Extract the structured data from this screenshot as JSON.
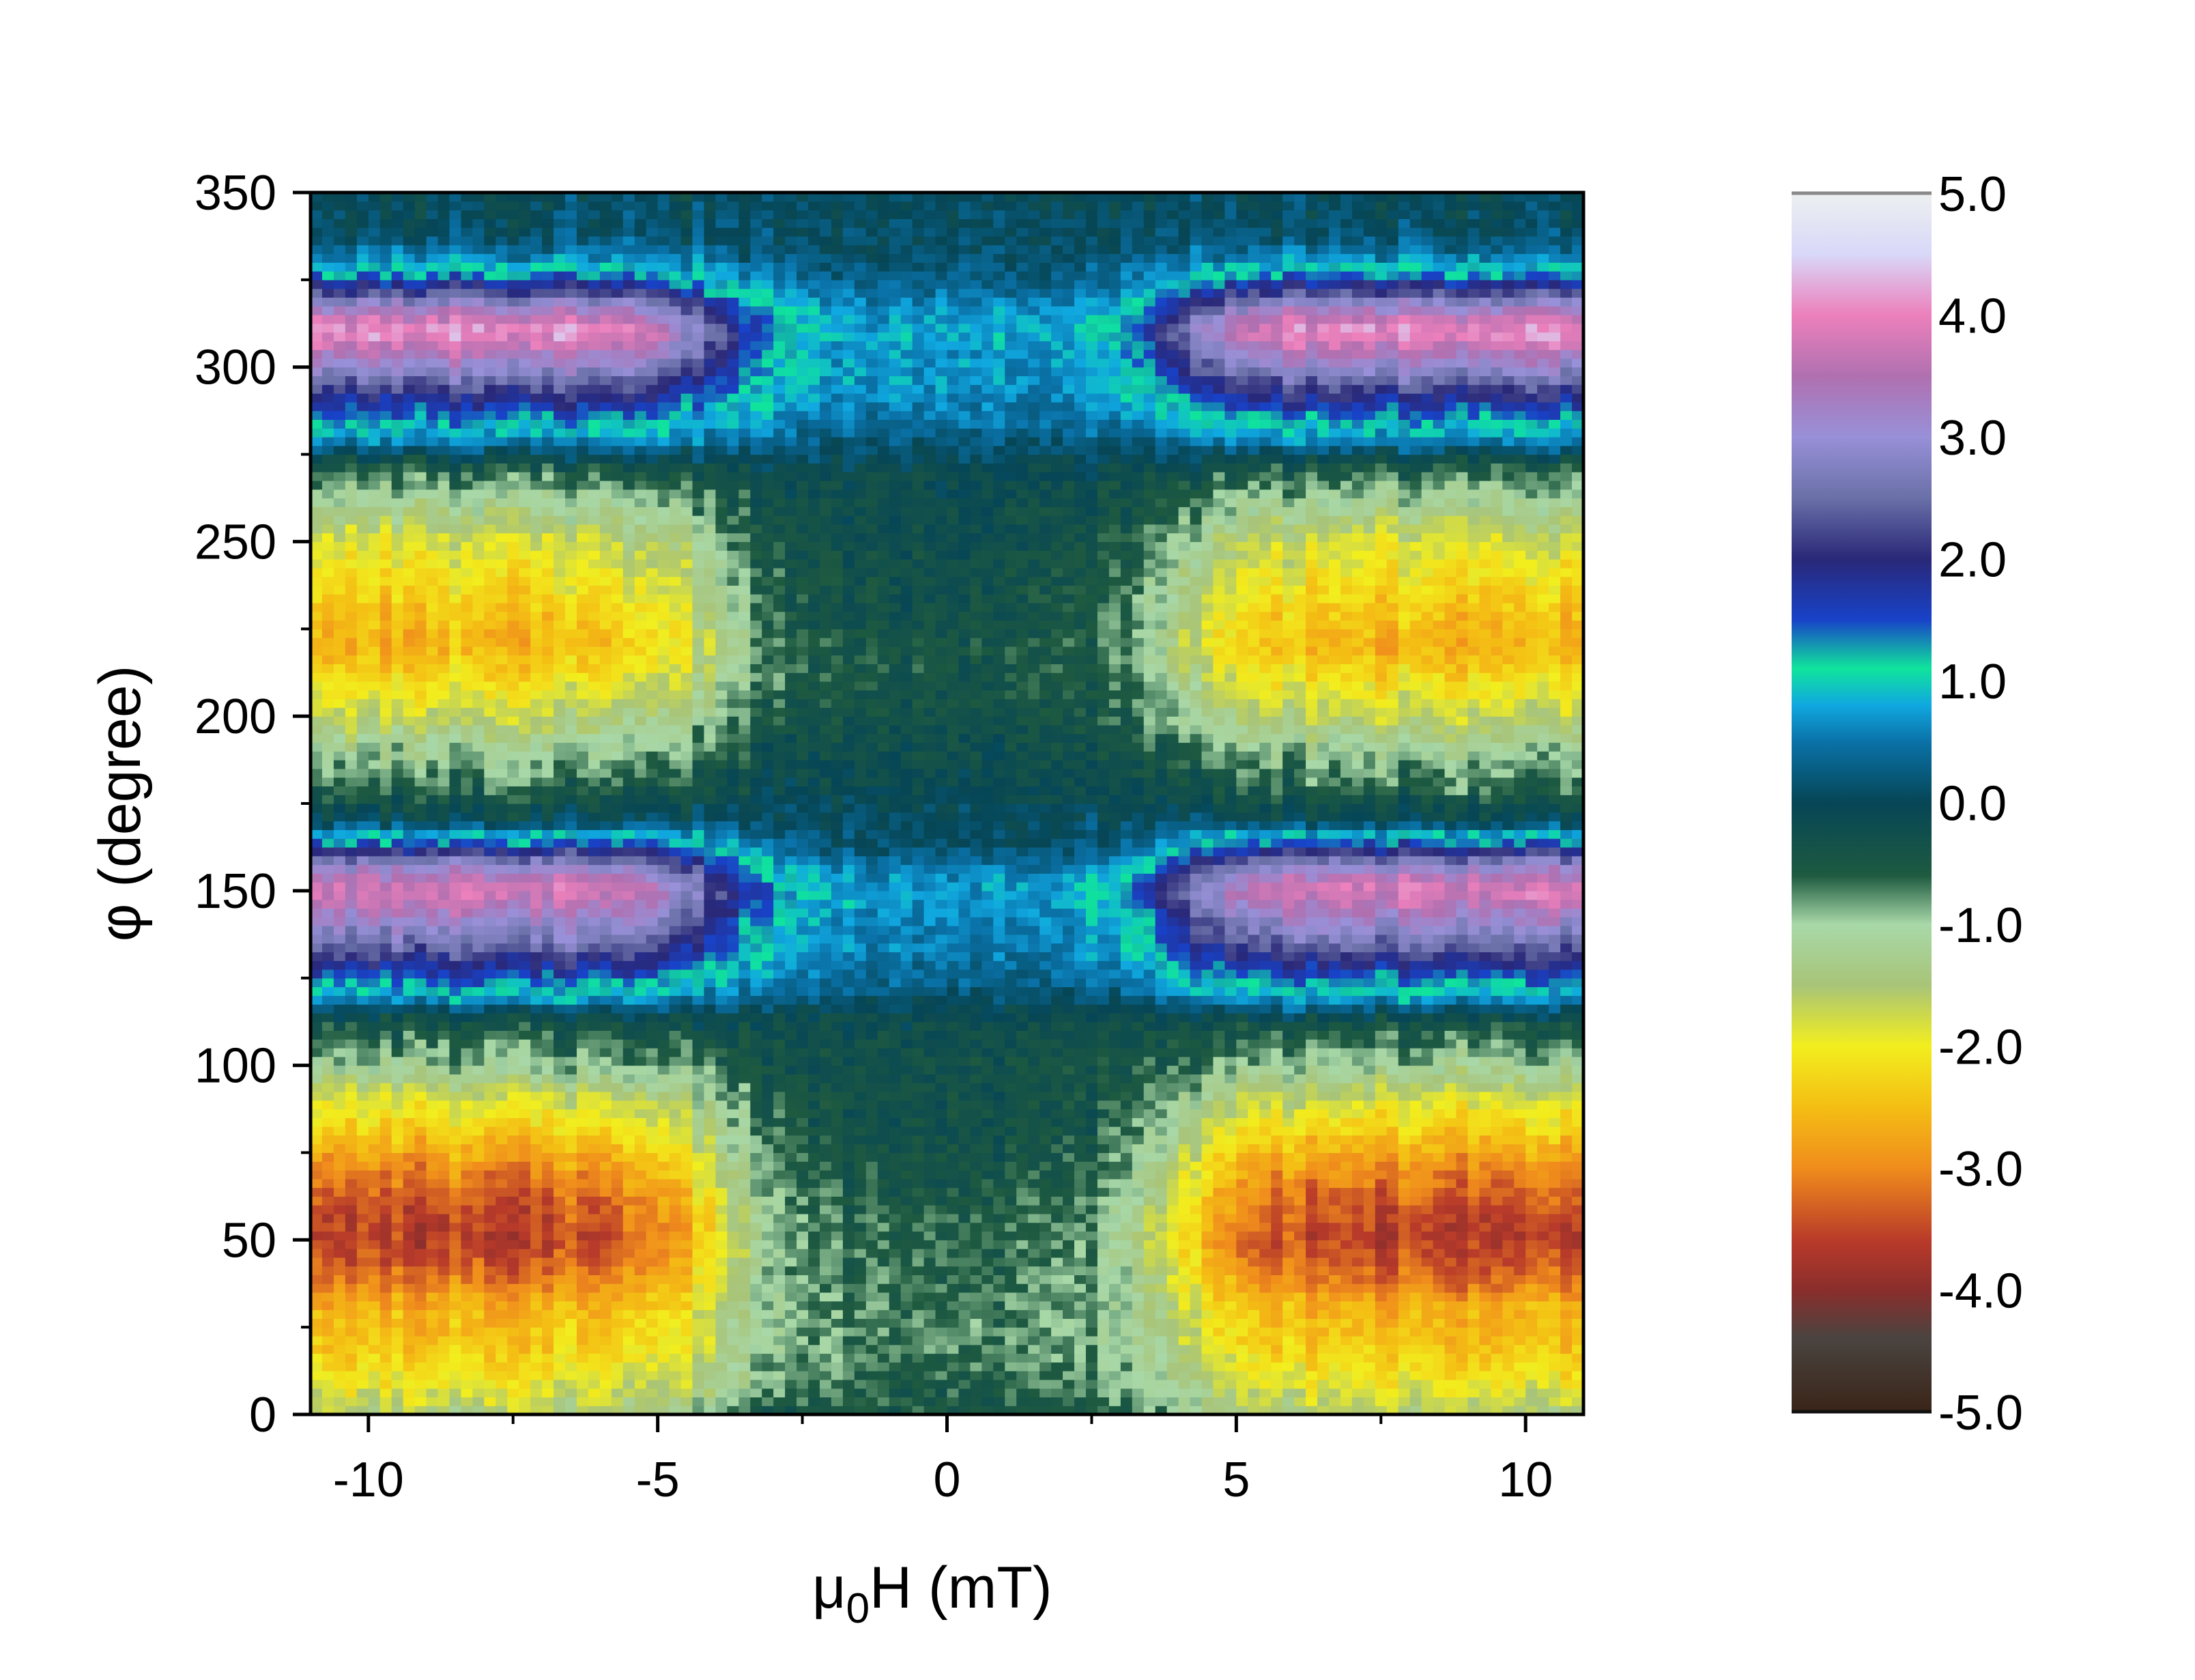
{
  "chart_data": {
    "type": "heatmap",
    "xlabel_main": "μ",
    "xlabel_sub": "0",
    "xlabel_rest": "H (mT)",
    "ylabel": "φ (degree)",
    "xlim": [
      -11,
      11
    ],
    "ylim": [
      0,
      350
    ],
    "x_ticks": [
      {
        "value": -10,
        "label": "-10"
      },
      {
        "value": -5,
        "label": "-5"
      },
      {
        "value": 0,
        "label": "0"
      },
      {
        "value": 5,
        "label": "5"
      },
      {
        "value": 10,
        "label": "10"
      }
    ],
    "y_ticks": [
      {
        "value": 0,
        "label": "0"
      },
      {
        "value": 50,
        "label": "50"
      },
      {
        "value": 100,
        "label": "100"
      },
      {
        "value": 150,
        "label": "150"
      },
      {
        "value": 200,
        "label": "200"
      },
      {
        "value": 250,
        "label": "250"
      },
      {
        "value": 300,
        "label": "300"
      },
      {
        "value": 350,
        "label": "350"
      }
    ],
    "colorbar": {
      "range": [
        -5.0,
        5.0
      ],
      "ticks": [
        {
          "value": 5.0,
          "label": "5.0"
        },
        {
          "value": 4.0,
          "label": "4.0"
        },
        {
          "value": 3.0,
          "label": "3.0"
        },
        {
          "value": 2.0,
          "label": "2.0"
        },
        {
          "value": 1.0,
          "label": "1.0"
        },
        {
          "value": 0.0,
          "label": "0.0"
        },
        {
          "value": -1.0,
          "label": "-1.0"
        },
        {
          "value": -2.0,
          "label": "-2.0"
        },
        {
          "value": -3.0,
          "label": "-3.0"
        },
        {
          "value": -4.0,
          "label": "-4.0"
        },
        {
          "value": -5.0,
          "label": "-5.0"
        }
      ],
      "stops": [
        {
          "value": -5.0,
          "color": "#3a2418"
        },
        {
          "value": -4.4,
          "color": "#4a4440"
        },
        {
          "value": -4.0,
          "color": "#8a2e2c"
        },
        {
          "value": -3.6,
          "color": "#b83a2a"
        },
        {
          "value": -3.0,
          "color": "#f08c1c"
        },
        {
          "value": -2.5,
          "color": "#f4be14"
        },
        {
          "value": -2.0,
          "color": "#f2ee1e"
        },
        {
          "value": -1.5,
          "color": "#a8c478"
        },
        {
          "value": -1.0,
          "color": "#a8d8a8"
        },
        {
          "value": -0.6,
          "color": "#1e5a40"
        },
        {
          "value": 0.0,
          "color": "#064656"
        },
        {
          "value": 0.5,
          "color": "#0a72a8"
        },
        {
          "value": 0.8,
          "color": "#10a8e0"
        },
        {
          "value": 1.1,
          "color": "#10e49c"
        },
        {
          "value": 1.5,
          "color": "#1842c8"
        },
        {
          "value": 2.0,
          "color": "#2a2878"
        },
        {
          "value": 2.5,
          "color": "#6a70a8"
        },
        {
          "value": 3.0,
          "color": "#9890d8"
        },
        {
          "value": 3.5,
          "color": "#b070b0"
        },
        {
          "value": 4.0,
          "color": "#ec80bc"
        },
        {
          "value": 4.5,
          "color": "#d8d8f8"
        },
        {
          "value": 5.0,
          "color": "#ecf0f0"
        }
      ]
    },
    "grid": false,
    "bands_description_free": true,
    "phi_profile": {
      "phi": [
        0,
        10,
        20,
        30,
        40,
        50,
        60,
        70,
        80,
        90,
        100,
        110,
        115,
        120,
        125,
        130,
        135,
        140,
        145,
        150,
        155,
        160,
        165,
        170,
        175,
        180,
        190,
        200,
        210,
        220,
        230,
        240,
        250,
        260,
        270,
        275,
        280,
        285,
        290,
        295,
        300,
        305,
        310,
        315,
        320,
        325,
        330,
        335,
        340,
        350
      ],
      "value_high_field": [
        -1.5,
        -2.0,
        -2.4,
        -2.6,
        -3.2,
        -3.6,
        -3.4,
        -3.0,
        -2.4,
        -1.8,
        -1.0,
        -0.5,
        0.0,
        0.9,
        1.5,
        2.0,
        2.6,
        3.0,
        3.5,
        3.9,
        3.4,
        2.4,
        1.2,
        0.0,
        -0.3,
        -0.6,
        -1.0,
        -1.6,
        -2.1,
        -2.6,
        -2.4,
        -2.1,
        -1.8,
        -1.2,
        -0.6,
        0.0,
        0.8,
        1.3,
        1.8,
        2.4,
        3.0,
        3.6,
        4.2,
        3.6,
        2.6,
        1.6,
        0.8,
        0.3,
        0.1,
        0.0
      ],
      "value_low_field": [
        -0.4,
        -0.6,
        -0.7,
        -0.7,
        -0.6,
        -0.6,
        -0.5,
        -0.4,
        -0.3,
        -0.3,
        -0.3,
        -0.2,
        -0.1,
        0.2,
        0.4,
        0.5,
        0.6,
        0.6,
        0.7,
        0.8,
        0.6,
        0.3,
        0.1,
        0.1,
        0.0,
        -0.1,
        -0.2,
        -0.3,
        -0.4,
        -0.4,
        -0.3,
        -0.3,
        -0.2,
        -0.2,
        -0.1,
        0.1,
        0.3,
        0.5,
        0.6,
        0.7,
        0.7,
        0.7,
        0.8,
        0.7,
        0.5,
        0.3,
        0.2,
        0.1,
        0.1,
        0.0
      ]
    },
    "switching_field_mT": 4.0
  }
}
